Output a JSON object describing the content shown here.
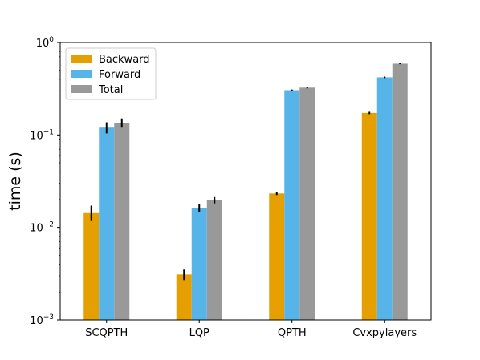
{
  "chart_data": {
    "type": "bar",
    "scale": "log",
    "categories": [
      "SCQPTH",
      "LQP",
      "QPTH",
      "Cvxpylayers"
    ],
    "ylabel": "time (s)",
    "ylim": [
      0.001,
      1
    ],
    "yticks": [
      {
        "value": 0.001,
        "base": "10",
        "exp": "−3"
      },
      {
        "value": 0.01,
        "base": "10",
        "exp": "−2"
      },
      {
        "value": 0.1,
        "base": "10",
        "exp": "−1"
      },
      {
        "value": 1,
        "base": "10",
        "exp": "0"
      }
    ],
    "grid": false,
    "legend_position": "top-left",
    "series": [
      {
        "name": "Backward",
        "color": "#E69F00",
        "values": [
          0.0143,
          0.0031,
          0.0233,
          0.173
        ],
        "err_low": [
          0.0117,
          0.0027,
          0.0224,
          0.168
        ],
        "err_high": [
          0.0172,
          0.0035,
          0.0243,
          0.178
        ]
      },
      {
        "name": "Forward",
        "color": "#56B4E9",
        "values": [
          0.12,
          0.0162,
          0.305,
          0.42
        ],
        "err_low": [
          0.104,
          0.0148,
          0.3,
          0.412
        ],
        "err_high": [
          0.137,
          0.0178,
          0.31,
          0.428
        ]
      },
      {
        "name": "Total",
        "color": "#999999",
        "values": [
          0.135,
          0.0197,
          0.325,
          0.59
        ],
        "err_low": [
          0.12,
          0.0182,
          0.319,
          0.582
        ],
        "err_high": [
          0.151,
          0.0213,
          0.331,
          0.598
        ]
      }
    ]
  }
}
